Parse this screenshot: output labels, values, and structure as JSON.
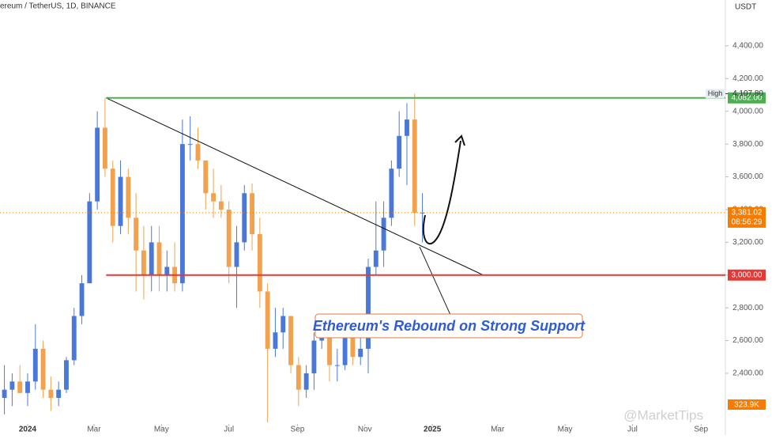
{
  "chart_data": {
    "type": "candlestick",
    "title": "ereum / TetherUS, 1D, BINANCE",
    "y_axis_label": "USDT",
    "x": [
      -21,
      -14,
      -7,
      0,
      7,
      14,
      21,
      28,
      35,
      42,
      49,
      56,
      63,
      70,
      77,
      84,
      91,
      98,
      105,
      112,
      119,
      126,
      133,
      140,
      147,
      154,
      161,
      168,
      175,
      182,
      189,
      196,
      203,
      210,
      217,
      224,
      231,
      238,
      245,
      252,
      259,
      266,
      273,
      280,
      287,
      294,
      301,
      308,
      315,
      322,
      329,
      336,
      343,
      350,
      357
    ],
    "open": [
      2250,
      2300,
      2350,
      2280,
      2350,
      2550,
      2300,
      2250,
      2300,
      2480,
      2750,
      2950,
      3450,
      3900,
      3650,
      3300,
      3600,
      3350,
      3150,
      3000,
      3200,
      3000,
      3050,
      2950,
      3800,
      3800,
      3700,
      3500,
      3450,
      3400,
      3050,
      3200,
      3500,
      3250,
      2900,
      2550,
      2650,
      2750,
      2450,
      2300,
      2400,
      2600,
      2650,
      2450,
      2450,
      2700,
      2500,
      2550,
      3050,
      3150,
      3350,
      3650,
      3850,
      3950,
      3380
    ],
    "high": [
      2450,
      2400,
      2450,
      2400,
      2700,
      2600,
      2380,
      2350,
      2500,
      2800,
      3000,
      3500,
      4000,
      4082,
      3700,
      3700,
      3650,
      3500,
      3300,
      3300,
      3300,
      3150,
      3200,
      3950,
      3970,
      3900,
      3700,
      3650,
      3550,
      3450,
      3300,
      3550,
      3560,
      3350,
      2950,
      2800,
      2800,
      2750,
      2500,
      2450,
      2650,
      2700,
      2700,
      2550,
      2750,
      2750,
      2700,
      3100,
      3450,
      3450,
      3700,
      4000,
      4050,
      4107.8,
      3500
    ],
    "low": [
      2150,
      2200,
      2280,
      2200,
      2300,
      2250,
      2170,
      2200,
      2280,
      2450,
      2700,
      2950,
      3400,
      3600,
      3200,
      3250,
      3250,
      2900,
      2850,
      2900,
      2900,
      2900,
      2900,
      2900,
      3700,
      3650,
      3400,
      3350,
      3350,
      2950,
      2800,
      3150,
      3150,
      2800,
      2100,
      2500,
      2550,
      2400,
      2200,
      2250,
      2300,
      2550,
      2350,
      2350,
      2420,
      2450,
      2450,
      2400,
      3000,
      3050,
      3300,
      3600,
      3550,
      3300,
      3200
    ],
    "close": [
      2300,
      2350,
      2280,
      2350,
      2550,
      2300,
      2250,
      2300,
      2480,
      2750,
      2950,
      3450,
      3900,
      3650,
      3300,
      3600,
      3350,
      3150,
      3000,
      3200,
      3000,
      3050,
      2950,
      3800,
      3800,
      3700,
      3500,
      3450,
      3400,
      3050,
      3200,
      3500,
      3250,
      2900,
      2550,
      2650,
      2750,
      2450,
      2300,
      2400,
      2600,
      2650,
      2450,
      2450,
      2700,
      2500,
      2550,
      3050,
      3150,
      3350,
      3650,
      3850,
      3950,
      3380,
      3381.02
    ],
    "up_color": "#4a78d8",
    "down_color": "#f2a24e",
    "xlim": [
      -25,
      631
    ],
    "xticks": [
      {
        "value": 0,
        "label": "2024"
      },
      {
        "value": 60,
        "label": "Mar"
      },
      {
        "value": 121,
        "label": "May"
      },
      {
        "value": 182,
        "label": "Jul"
      },
      {
        "value": 244,
        "label": "Sep"
      },
      {
        "value": 305,
        "label": "Nov"
      },
      {
        "value": 366,
        "label": "2025"
      },
      {
        "value": 425,
        "label": "Mar"
      },
      {
        "value": 486,
        "label": "May"
      },
      {
        "value": 547,
        "label": "Jul"
      },
      {
        "value": 609,
        "label": "Sep"
      }
    ],
    "ylim": [
      2023,
      4680
    ],
    "yticks": [
      {
        "value": 2400,
        "label": "2,400.00"
      },
      {
        "value": 2600,
        "label": "2,600.00"
      },
      {
        "value": 2800,
        "label": "2,800.00"
      },
      {
        "value": 3000,
        "label": "3,000.00"
      },
      {
        "value": 3200,
        "label": "3,200.00"
      },
      {
        "value": 3400,
        "label": "3,400.00"
      },
      {
        "value": 3600,
        "label": "3,600.00"
      },
      {
        "value": 3800,
        "label": "3,800.00"
      },
      {
        "value": 4000,
        "label": "4,000.00"
      },
      {
        "value": 4200,
        "label": "4,200.00"
      },
      {
        "value": 4400,
        "label": "4,400.00"
      }
    ],
    "levels": [
      {
        "value": 4082,
        "label": "4,082.00",
        "color": "#4caf50"
      },
      {
        "value": 3000,
        "label": "3,000.00",
        "color": "#e53935"
      }
    ],
    "high_marker": {
      "name": "High",
      "value": 4107.8,
      "label": "4,107.80"
    },
    "last_price": {
      "value": 3381.02,
      "label": "3,381.02",
      "countdown": "08:56:29",
      "color": "#f57c00"
    },
    "trendline": {
      "x": [
        71,
        412
      ],
      "y": [
        4082,
        3000
      ]
    },
    "annotation": "Ethereum's Rebound on Strong Support",
    "volume_label": "323.9K",
    "watermark": "@MarketTips"
  }
}
